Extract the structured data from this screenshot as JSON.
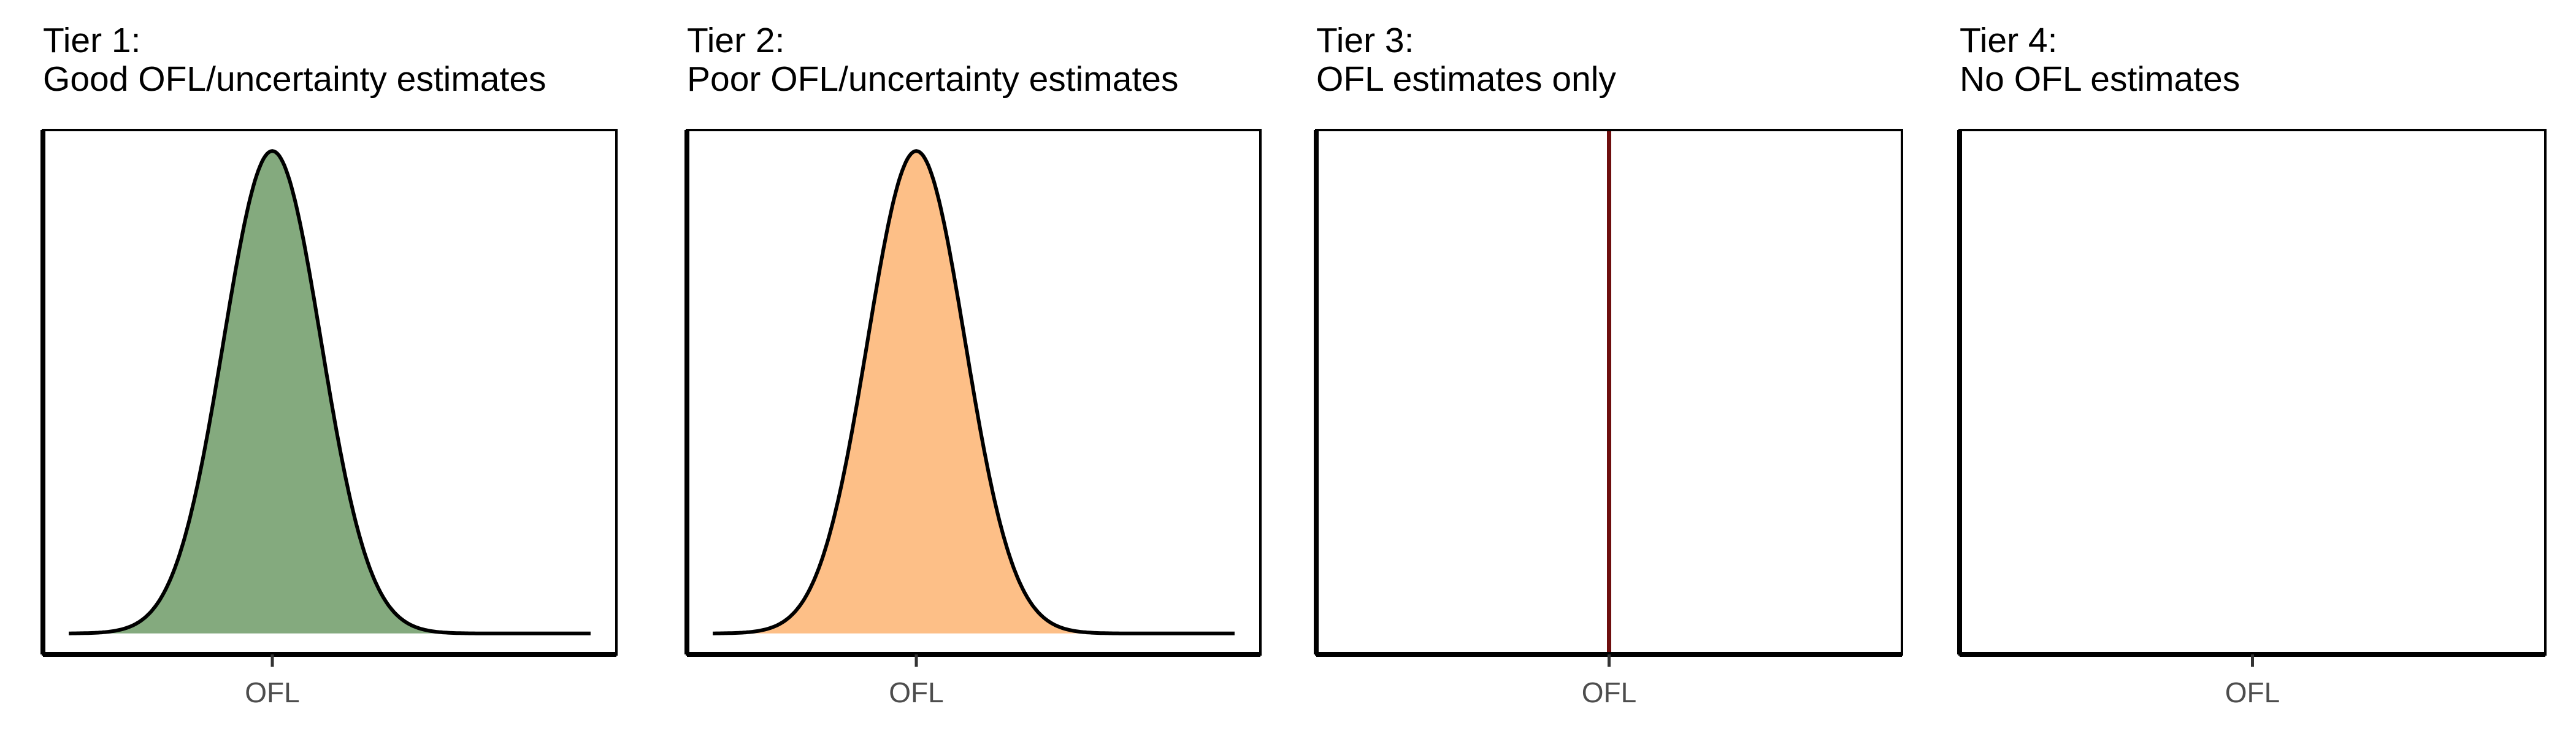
{
  "chart_data": [
    {
      "type": "area",
      "title_line1": "Tier 1:",
      "title_line2": "Good OFL/uncertainty estimates",
      "xlabel": "",
      "ylabel": "",
      "x_tick_label": "OFL",
      "curve": {
        "center": 0.4,
        "spread": 0.085
      },
      "fill_color": "#84aa7e",
      "line_color": "#000000"
    },
    {
      "type": "area",
      "title_line1": "Tier 2:",
      "title_line2": "Poor OFL/uncertainty estimates",
      "xlabel": "",
      "ylabel": "",
      "x_tick_label": "OFL",
      "curve": {
        "center": 0.4,
        "spread": 0.085
      },
      "fill_color": "#fdbf87",
      "line_color": "#000000"
    },
    {
      "type": "line",
      "title_line1": "Tier 3:",
      "title_line2": "OFL estimates only",
      "xlabel": "",
      "ylabel": "",
      "x_tick_label": "OFL",
      "vline_at": 0.5,
      "line_color": "#6e0e0e"
    },
    {
      "type": "line",
      "title_line1": "Tier 4:",
      "title_line2": "No OFL estimates",
      "xlabel": "",
      "ylabel": "",
      "x_tick_label": "OFL"
    }
  ]
}
